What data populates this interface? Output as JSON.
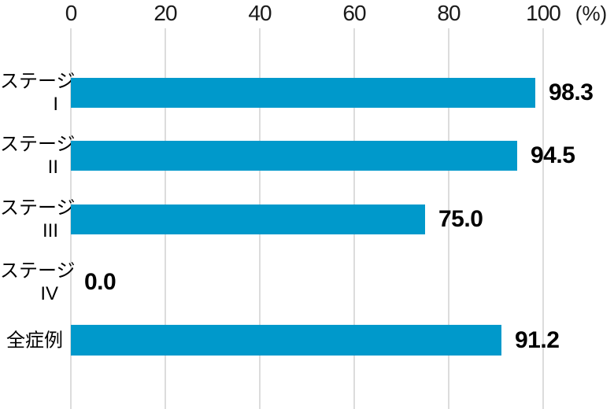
{
  "axis": {
    "ticks": [
      "0",
      "20",
      "40",
      "60",
      "80",
      "100"
    ],
    "unit_label": "(%)"
  },
  "chart_data": {
    "type": "bar",
    "orientation": "horizontal",
    "title": "",
    "xlabel": "(%)",
    "ylabel": "",
    "xlim": [
      0,
      100
    ],
    "grid": true,
    "legend": false,
    "bar_color": "#0099cb",
    "gridline_color": "#dcdcdc",
    "categories": [
      "ステージI",
      "ステージII",
      "ステージIII",
      "ステージIV",
      "全症例"
    ],
    "values": [
      98.3,
      94.5,
      75.0,
      0.0,
      91.2
    ],
    "rows": [
      {
        "label_line1": "ステージ",
        "label_line2": "I",
        "value": 98.3,
        "display": "98.3"
      },
      {
        "label_line1": "ステージ",
        "label_line2": "II",
        "value": 94.5,
        "display": "94.5"
      },
      {
        "label_line1": "ステージ",
        "label_line2": "III",
        "value": 75.0,
        "display": "75.0"
      },
      {
        "label_line1": "ステージ",
        "label_line2": "IV",
        "value": 0.0,
        "display": "0.0"
      },
      {
        "label_line1": "全症例",
        "label_line2": "",
        "value": 91.2,
        "display": "91.2"
      }
    ]
  }
}
